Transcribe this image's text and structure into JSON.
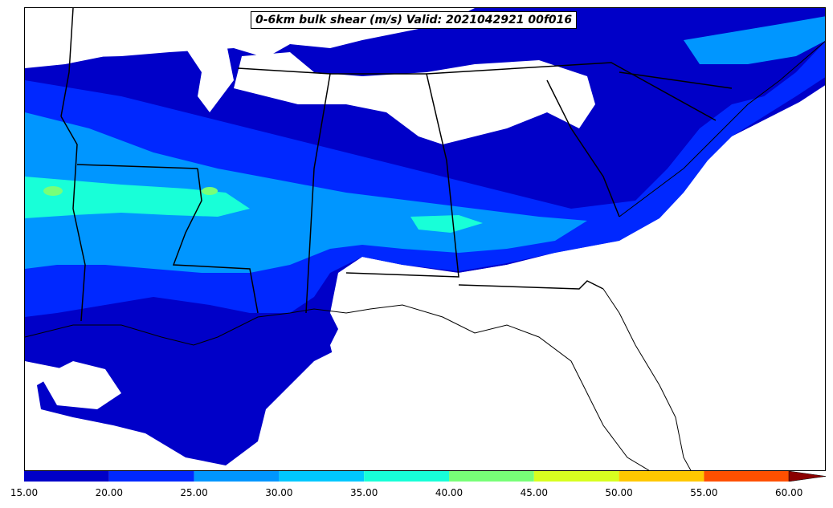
{
  "title": "0-6km bulk shear (m/s) Valid: 2021042921 00f016",
  "colorbar": {
    "levels": [
      "15.00",
      "20.00",
      "25.00",
      "30.00",
      "35.00",
      "40.00",
      "45.00",
      "50.00",
      "55.00",
      "60.00"
    ],
    "colors": [
      "#0000c8",
      "#0028ff",
      "#0096ff",
      "#00c8ff",
      "#18ffd8",
      "#78ff78",
      "#d8ff20",
      "#ffc800",
      "#ff5000",
      "#c80000"
    ],
    "extend_color": "#8b0000"
  },
  "colors": {
    "shear_15": "#0000c8",
    "shear_20": "#0028ff",
    "shear_25": "#0096ff",
    "shear_30": "#18ffd8",
    "shear_35": "#78ff78",
    "border": "#000000"
  }
}
